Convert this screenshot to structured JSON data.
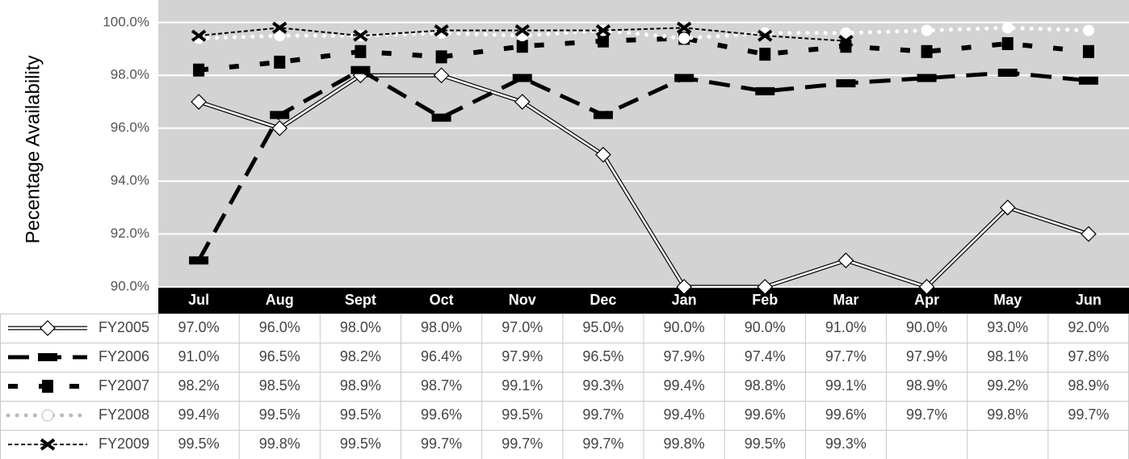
{
  "chart_data": {
    "type": "line",
    "y_label": "Pecentage Availability",
    "categories": [
      "Jul",
      "Aug",
      "Sept",
      "Oct",
      "Nov",
      "Dec",
      "Jan",
      "Feb",
      "Mar",
      "Apr",
      "May",
      "Jun"
    ],
    "ylim": [
      90,
      100.85
    ],
    "yticks": [
      {
        "value": 90,
        "label": "90.0%"
      },
      {
        "value": 92,
        "label": "92.0%"
      },
      {
        "value": 94,
        "label": "94.0%"
      },
      {
        "value": 96,
        "label": "96.0%"
      },
      {
        "value": 98,
        "label": "98.0%"
      },
      {
        "value": 100,
        "label": "100.0%"
      }
    ],
    "grid": true,
    "series": [
      {
        "name": "FY2005",
        "color": "#000000",
        "values": [
          97.0,
          96.0,
          98.0,
          98.0,
          97.0,
          95.0,
          90.0,
          90.0,
          91.0,
          90.0,
          93.0,
          92.0
        ],
        "value_labels": [
          "97.0%",
          "96.0%",
          "98.0%",
          "98.0%",
          "97.0%",
          "95.0%",
          "90.0%",
          "90.0%",
          "91.0%",
          "90.0%",
          "93.0%",
          "92.0%"
        ]
      },
      {
        "name": "FY2006",
        "color": "#000000",
        "values": [
          91.0,
          96.5,
          98.2,
          96.4,
          97.9,
          96.5,
          97.9,
          97.4,
          97.7,
          97.9,
          98.1,
          97.8
        ],
        "value_labels": [
          "91.0%",
          "96.5%",
          "98.2%",
          "96.4%",
          "97.9%",
          "96.5%",
          "97.9%",
          "97.4%",
          "97.7%",
          "97.9%",
          "98.1%",
          "97.8%"
        ]
      },
      {
        "name": "FY2007",
        "color": "#000000",
        "values": [
          98.2,
          98.5,
          98.9,
          98.7,
          99.1,
          99.3,
          99.4,
          98.8,
          99.1,
          98.9,
          99.2,
          98.9
        ],
        "value_labels": [
          "98.2%",
          "98.5%",
          "98.9%",
          "98.7%",
          "99.1%",
          "99.3%",
          "99.4%",
          "98.8%",
          "99.1%",
          "98.9%",
          "99.2%",
          "98.9%"
        ]
      },
      {
        "name": "FY2008",
        "color": "#ffffff",
        "values": [
          99.4,
          99.5,
          99.5,
          99.6,
          99.5,
          99.7,
          99.4,
          99.6,
          99.6,
          99.7,
          99.8,
          99.7
        ],
        "value_labels": [
          "99.4%",
          "99.5%",
          "99.5%",
          "99.6%",
          "99.5%",
          "99.7%",
          "99.4%",
          "99.6%",
          "99.6%",
          "99.7%",
          "99.8%",
          "99.7%"
        ]
      },
      {
        "name": "FY2009",
        "color": "#000000",
        "values": [
          99.5,
          99.8,
          99.5,
          99.7,
          99.7,
          99.7,
          99.8,
          99.5,
          99.3,
          null,
          null,
          null
        ],
        "value_labels": [
          "99.5%",
          "99.8%",
          "99.5%",
          "99.7%",
          "99.7%",
          "99.7%",
          "99.8%",
          "99.5%",
          "99.3%",
          null,
          null,
          null
        ]
      }
    ]
  }
}
